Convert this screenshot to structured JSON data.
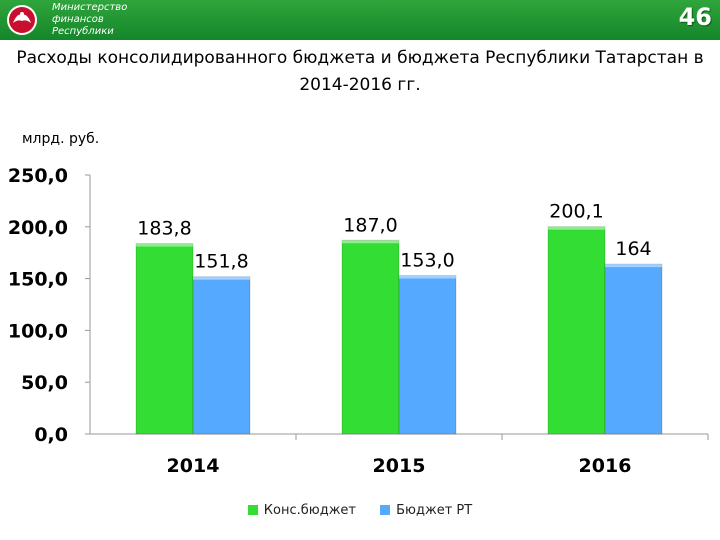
{
  "header": {
    "ministry_lines": [
      "Министерство",
      "финансов",
      "Республики"
    ],
    "page_number": "46"
  },
  "colors": {
    "header": "#1f9a33",
    "cons": "#33dd33",
    "rt": "#55aaff"
  },
  "chart_data": {
    "type": "bar",
    "title": "Расходы консолидированного бюджета и бюджета Республики Татарстан в 2014-2016 гг.",
    "unit_label": "млрд. руб.",
    "categories": [
      "2014",
      "2015",
      "2016"
    ],
    "series": [
      {
        "name": "Конс.бюджет",
        "values": [
          183.8,
          187.0,
          200.1
        ],
        "labels": [
          "183,8",
          "187,0",
          "200,1"
        ]
      },
      {
        "name": "Бюджет РТ",
        "values": [
          151.8,
          153.0,
          164
        ],
        "labels": [
          "151,8",
          "153,0",
          "164"
        ]
      }
    ],
    "ylim": [
      0,
      250
    ],
    "yticks": [
      0,
      50,
      100,
      150,
      200,
      250
    ],
    "ytick_labels": [
      "0,0",
      "50,0",
      "100,0",
      "150,0",
      "200,0",
      "250,0"
    ],
    "legend_position": "bottom",
    "grid": false
  }
}
